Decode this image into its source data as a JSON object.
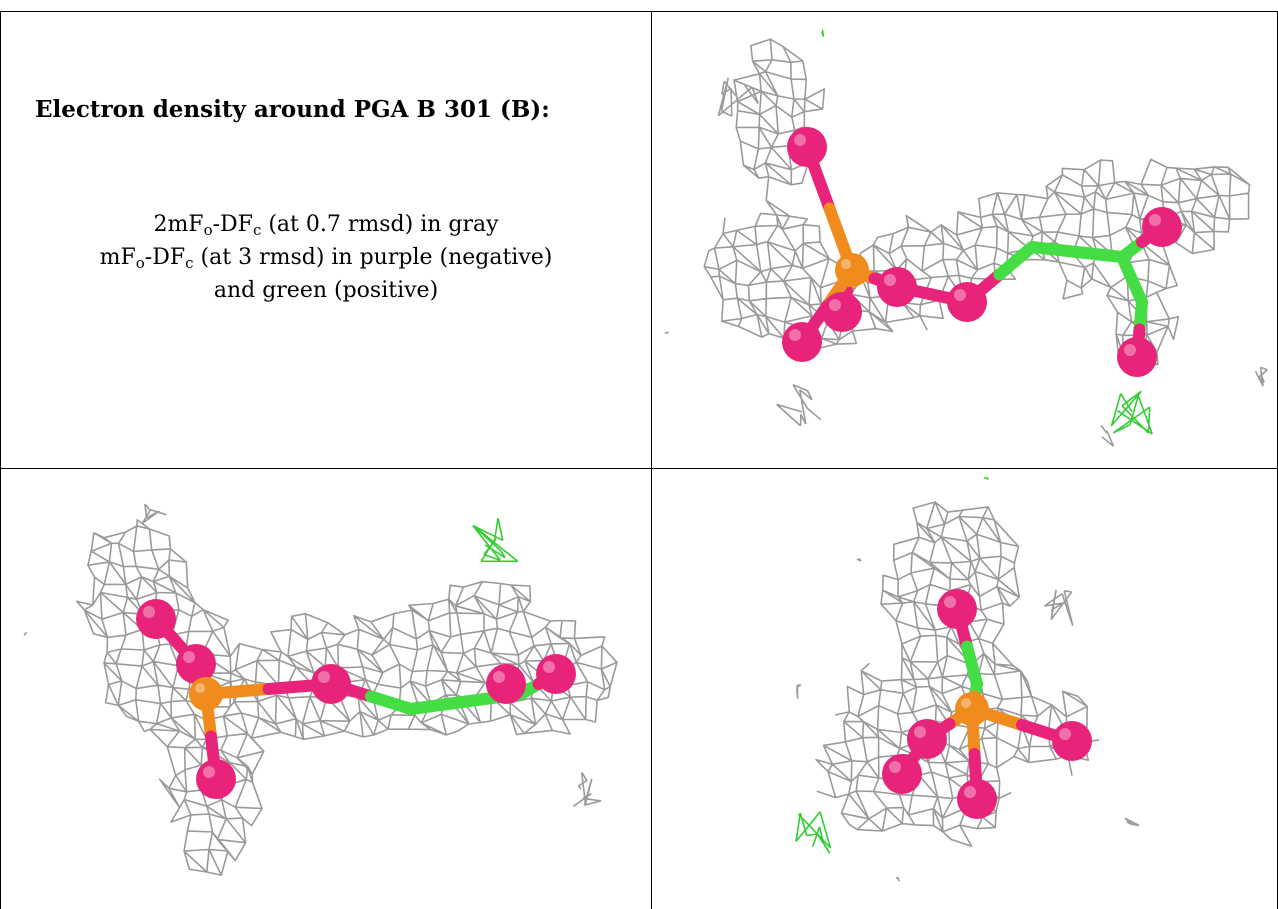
{
  "caption": {
    "heading": "Electron density around PGA B 301 (B):",
    "line1": {
      "pre": "2mF",
      "sub1": "o",
      "mid": "-DF",
      "sub2": "c",
      "post": " (at 0.7 rmsd) in gray"
    },
    "line2": {
      "pre": "mF",
      "sub1": "o",
      "mid": "-DF",
      "sub2": "c",
      "post": " (at 3 rmsd) in purple (negative)"
    },
    "line3": "and green (positive)"
  },
  "colors": {
    "mesh_2fofc": "#9a9a9a",
    "mesh_positive": "#33cc33",
    "oxygen": "#e8247a",
    "phosphorus": "#f08c1e",
    "carbon": "#44dd44",
    "grid_line": "#000000"
  },
  "panels": [
    {
      "name": "view-top-right",
      "ligand": "PGA"
    },
    {
      "name": "view-bottom-left",
      "ligand": "PGA"
    },
    {
      "name": "view-bottom-right",
      "ligand": "PGA"
    }
  ]
}
